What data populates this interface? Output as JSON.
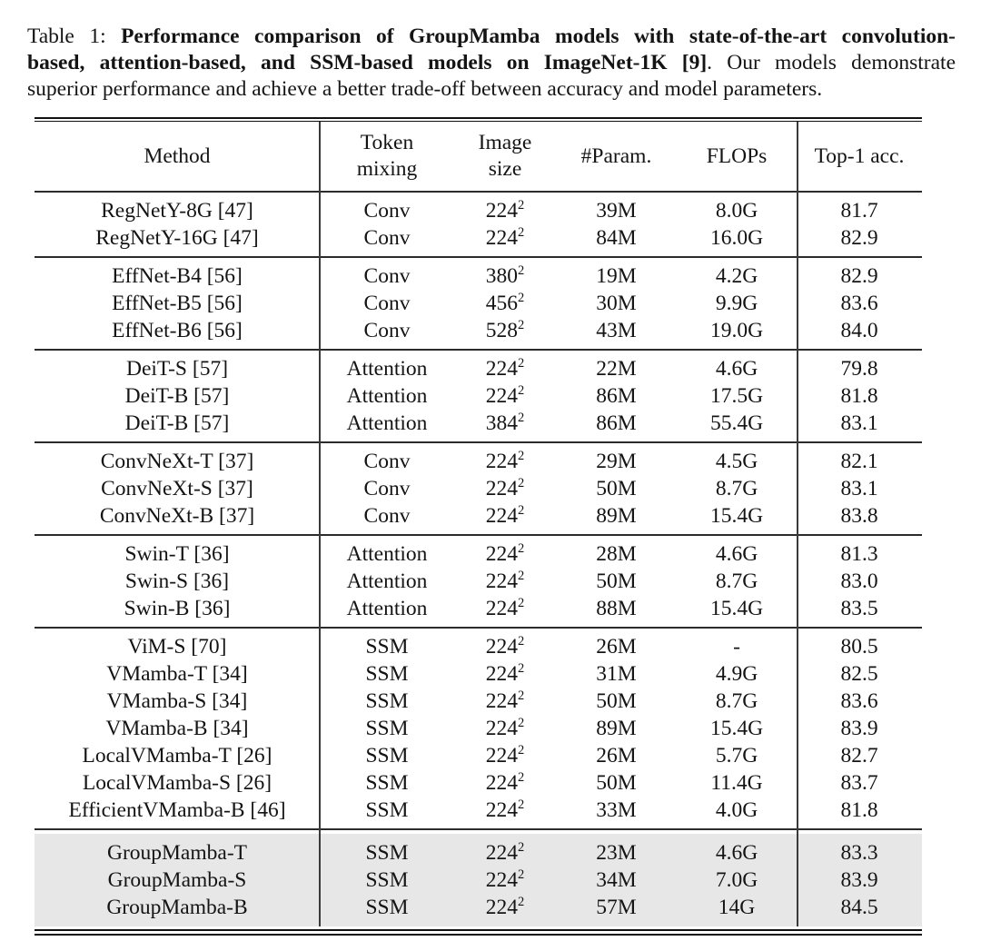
{
  "caption": {
    "lines": [
      {
        "justify": true,
        "segments": [
          {
            "text": "Table 1: ",
            "bold": false
          },
          {
            "text": "Performance comparison of GroupMamba models with state-of-the-art convolution-",
            "bold": true
          }
        ]
      },
      {
        "justify": true,
        "segments": [
          {
            "text": "based, attention-based, and SSM-based models on ImageNet-1K [9]",
            "bold": true
          },
          {
            "text": ". Our models demonstrate",
            "bold": false
          }
        ]
      },
      {
        "justify": false,
        "segments": [
          {
            "text": "superior performance and achieve a better trade-off between accuracy and model parameters.",
            "bold": false
          }
        ]
      }
    ]
  },
  "table": {
    "highlight_color": "#e7e7e7",
    "headers": [
      {
        "id": "method",
        "label": "Method"
      },
      {
        "id": "mixing",
        "label": "Token\nmixing"
      },
      {
        "id": "size",
        "label": "Image\nsize"
      },
      {
        "id": "params",
        "label": "#Param."
      },
      {
        "id": "flops",
        "label": "FLOPs"
      },
      {
        "id": "acc",
        "label": "Top-1 acc."
      }
    ],
    "groups": [
      {
        "highlight": false,
        "rows": [
          {
            "method": "RegNetY-8G [47]",
            "mixing": "Conv",
            "size_base": "224",
            "size_exp": "2",
            "params": "39M",
            "flops": "8.0G",
            "acc": "81.7"
          },
          {
            "method": "RegNetY-16G [47]",
            "mixing": "Conv",
            "size_base": "224",
            "size_exp": "2",
            "params": "84M",
            "flops": "16.0G",
            "acc": "82.9"
          }
        ]
      },
      {
        "highlight": false,
        "rows": [
          {
            "method": "EffNet-B4 [56]",
            "mixing": "Conv",
            "size_base": "380",
            "size_exp": "2",
            "params": "19M",
            "flops": "4.2G",
            "acc": "82.9"
          },
          {
            "method": "EffNet-B5 [56]",
            "mixing": "Conv",
            "size_base": "456",
            "size_exp": "2",
            "params": "30M",
            "flops": "9.9G",
            "acc": "83.6"
          },
          {
            "method": "EffNet-B6 [56]",
            "mixing": "Conv",
            "size_base": "528",
            "size_exp": "2",
            "params": "43M",
            "flops": "19.0G",
            "acc": "84.0"
          }
        ]
      },
      {
        "highlight": false,
        "rows": [
          {
            "method": "DeiT-S [57]",
            "mixing": "Attention",
            "size_base": "224",
            "size_exp": "2",
            "params": "22M",
            "flops": "4.6G",
            "acc": "79.8"
          },
          {
            "method": "DeiT-B [57]",
            "mixing": "Attention",
            "size_base": "224",
            "size_exp": "2",
            "params": "86M",
            "flops": "17.5G",
            "acc": "81.8"
          },
          {
            "method": "DeiT-B [57]",
            "mixing": "Attention",
            "size_base": "384",
            "size_exp": "2",
            "params": "86M",
            "flops": "55.4G",
            "acc": "83.1"
          }
        ]
      },
      {
        "highlight": false,
        "rows": [
          {
            "method": "ConvNeXt-T [37]",
            "mixing": "Conv",
            "size_base": "224",
            "size_exp": "2",
            "params": "29M",
            "flops": "4.5G",
            "acc": "82.1"
          },
          {
            "method": "ConvNeXt-S [37]",
            "mixing": "Conv",
            "size_base": "224",
            "size_exp": "2",
            "params": "50M",
            "flops": "8.7G",
            "acc": "83.1"
          },
          {
            "method": "ConvNeXt-B [37]",
            "mixing": "Conv",
            "size_base": "224",
            "size_exp": "2",
            "params": "89M",
            "flops": "15.4G",
            "acc": "83.8"
          }
        ]
      },
      {
        "highlight": false,
        "rows": [
          {
            "method": "Swin-T [36]",
            "mixing": "Attention",
            "size_base": "224",
            "size_exp": "2",
            "params": "28M",
            "flops": "4.6G",
            "acc": "81.3"
          },
          {
            "method": "Swin-S [36]",
            "mixing": "Attention",
            "size_base": "224",
            "size_exp": "2",
            "params": "50M",
            "flops": "8.7G",
            "acc": "83.0"
          },
          {
            "method": "Swin-B [36]",
            "mixing": "Attention",
            "size_base": "224",
            "size_exp": "2",
            "params": "88M",
            "flops": "15.4G",
            "acc": "83.5"
          }
        ]
      },
      {
        "highlight": false,
        "rows": [
          {
            "method": "ViM-S [70]",
            "mixing": "SSM",
            "size_base": "224",
            "size_exp": "2",
            "params": "26M",
            "flops": "-",
            "acc": "80.5"
          },
          {
            "method": "VMamba-T [34]",
            "mixing": "SSM",
            "size_base": "224",
            "size_exp": "2",
            "params": "31M",
            "flops": "4.9G",
            "acc": "82.5"
          },
          {
            "method": "VMamba-S [34]",
            "mixing": "SSM",
            "size_base": "224",
            "size_exp": "2",
            "params": "50M",
            "flops": "8.7G",
            "acc": "83.6"
          },
          {
            "method": "VMamba-B [34]",
            "mixing": "SSM",
            "size_base": "224",
            "size_exp": "2",
            "params": "89M",
            "flops": "15.4G",
            "acc": "83.9"
          },
          {
            "method": "LocalVMamba-T [26]",
            "mixing": "SSM",
            "size_base": "224",
            "size_exp": "2",
            "params": "26M",
            "flops": "5.7G",
            "acc": "82.7"
          },
          {
            "method": "LocalVMamba-S [26]",
            "mixing": "SSM",
            "size_base": "224",
            "size_exp": "2",
            "params": "50M",
            "flops": "11.4G",
            "acc": "83.7"
          },
          {
            "method": "EfficientVMamba-B [46]",
            "mixing": "SSM",
            "size_base": "224",
            "size_exp": "2",
            "params": "33M",
            "flops": "4.0G",
            "acc": "81.8"
          }
        ]
      },
      {
        "highlight": true,
        "rows": [
          {
            "method": "GroupMamba-T",
            "mixing": "SSM",
            "size_base": "224",
            "size_exp": "2",
            "params": "23M",
            "flops": "4.6G",
            "acc": "83.3"
          },
          {
            "method": "GroupMamba-S",
            "mixing": "SSM",
            "size_base": "224",
            "size_exp": "2",
            "params": "34M",
            "flops": "7.0G",
            "acc": "83.9"
          },
          {
            "method": "GroupMamba-B",
            "mixing": "SSM",
            "size_base": "224",
            "size_exp": "2",
            "params": "57M",
            "flops": "14G",
            "acc": "84.5"
          }
        ]
      }
    ]
  }
}
